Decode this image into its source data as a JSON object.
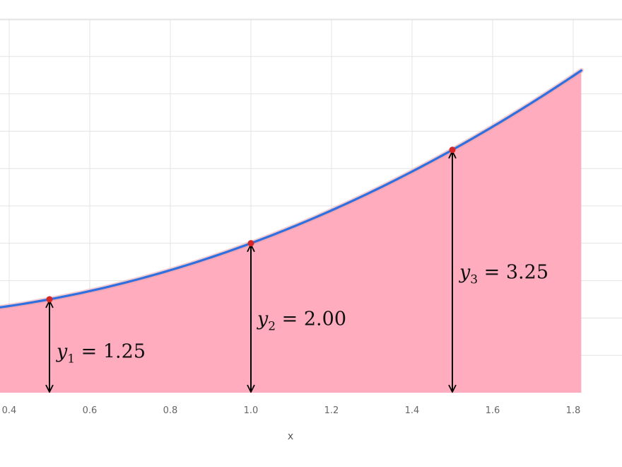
{
  "chart_data": {
    "type": "area",
    "function": "y = x^2 + 1",
    "x_range": [
      0.25,
      1.82
    ],
    "y_range": [
      0,
      5.0
    ],
    "xlabel": "x",
    "ylabel": "",
    "grid": true,
    "x_ticks": [
      {
        "value": 0.4,
        "label": "0.4"
      },
      {
        "value": 0.6,
        "label": "0.6"
      },
      {
        "value": 0.8,
        "label": "0.8"
      },
      {
        "value": 1.0,
        "label": "1.0"
      },
      {
        "value": 1.2,
        "label": "1.2"
      },
      {
        "value": 1.4,
        "label": "1.4"
      },
      {
        "value": 1.6,
        "label": "1.6"
      },
      {
        "value": 1.8,
        "label": "1.8"
      }
    ],
    "y_gridlines": [
      0.5,
      1.0,
      1.5,
      2.0,
      2.5,
      3.0,
      3.5,
      4.0,
      4.5,
      5.0
    ],
    "points": [
      {
        "x": 0.5,
        "y": 1.25,
        "label_var": "y",
        "label_sub": "1",
        "label_rest": " = 1.25"
      },
      {
        "x": 1.0,
        "y": 2.0,
        "label_var": "y",
        "label_sub": "2",
        "label_rest": " = 2.00"
      },
      {
        "x": 1.5,
        "y": 3.25,
        "label_var": "y",
        "label_sub": "3",
        "label_rest": " = 3.25"
      }
    ],
    "colors": {
      "fill": "#ffadbe",
      "curve": "#2f6fe0",
      "point": "#d62728",
      "arrow": "#000000",
      "grid": "#e3e3e3"
    }
  }
}
